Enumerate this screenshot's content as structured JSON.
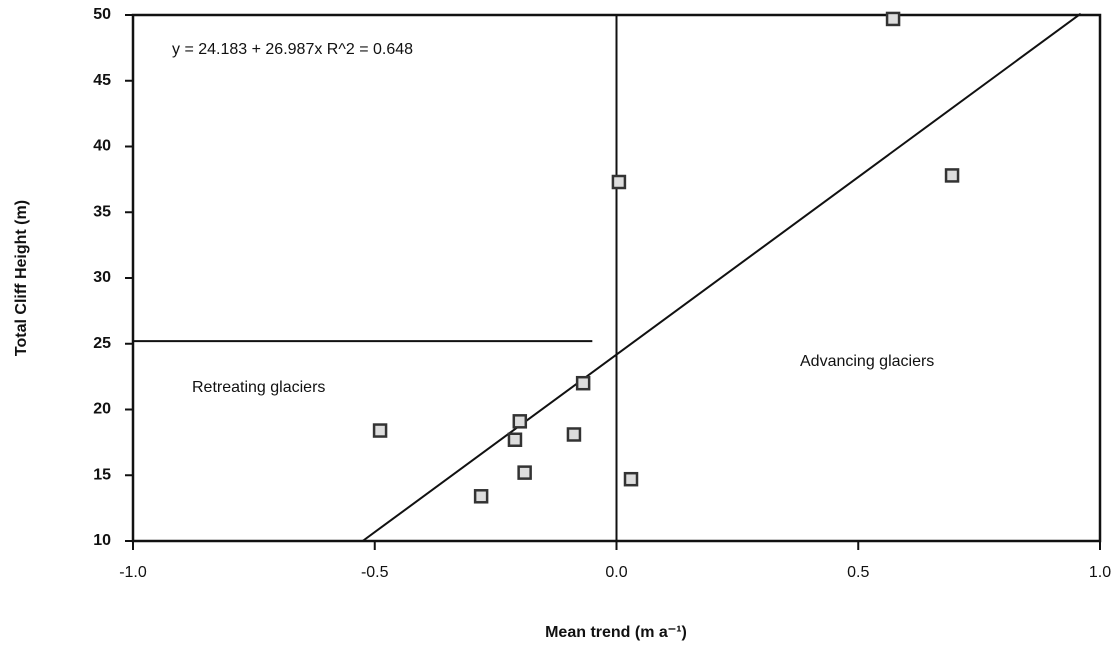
{
  "chart_data": {
    "type": "scatter",
    "x_label": "Mean trend (m a⁻¹)",
    "y_label": "Total Cliff Height (m)",
    "annotations": [
      "y = 24.183 + 26.987x   R^2 = 0.648",
      "Retreating glaciers",
      "Advancing glaciers"
    ],
    "x": [
      0.572,
      0.694,
      0.005,
      -0.069,
      -0.2,
      -0.489,
      -0.088,
      -0.21,
      -0.19,
      0.03,
      -0.28
    ],
    "values": [
      49.7,
      37.8,
      37.3,
      22.0,
      19.1,
      18.4,
      18.1,
      17.7,
      15.2,
      14.7,
      13.4
    ],
    "color": "#333333",
    "fit_line": {
      "x": [
        -0.525,
        0.96
      ],
      "y": [
        10.0,
        50.1
      ]
    },
    "reference_lines": [
      {
        "axis": "y",
        "value": 25.2,
        "x_range": [
          -1.0,
          -0.05
        ]
      },
      {
        "axis": "x",
        "value": 0
      }
    ],
    "xlim": [
      -1.0,
      1.0
    ],
    "xticks": [
      {
        "value": -1.0,
        "label": "-1.0"
      },
      {
        "value": -0.5,
        "label": "-0.5"
      },
      {
        "value": 0.0,
        "label": "0.0"
      },
      {
        "value": 0.5,
        "label": "0.5"
      },
      {
        "value": 1.0,
        "label": "1.0"
      }
    ],
    "ylim": [
      10,
      50
    ],
    "yticks": [
      10,
      15,
      20,
      25,
      30,
      35,
      40,
      45,
      50
    ]
  }
}
